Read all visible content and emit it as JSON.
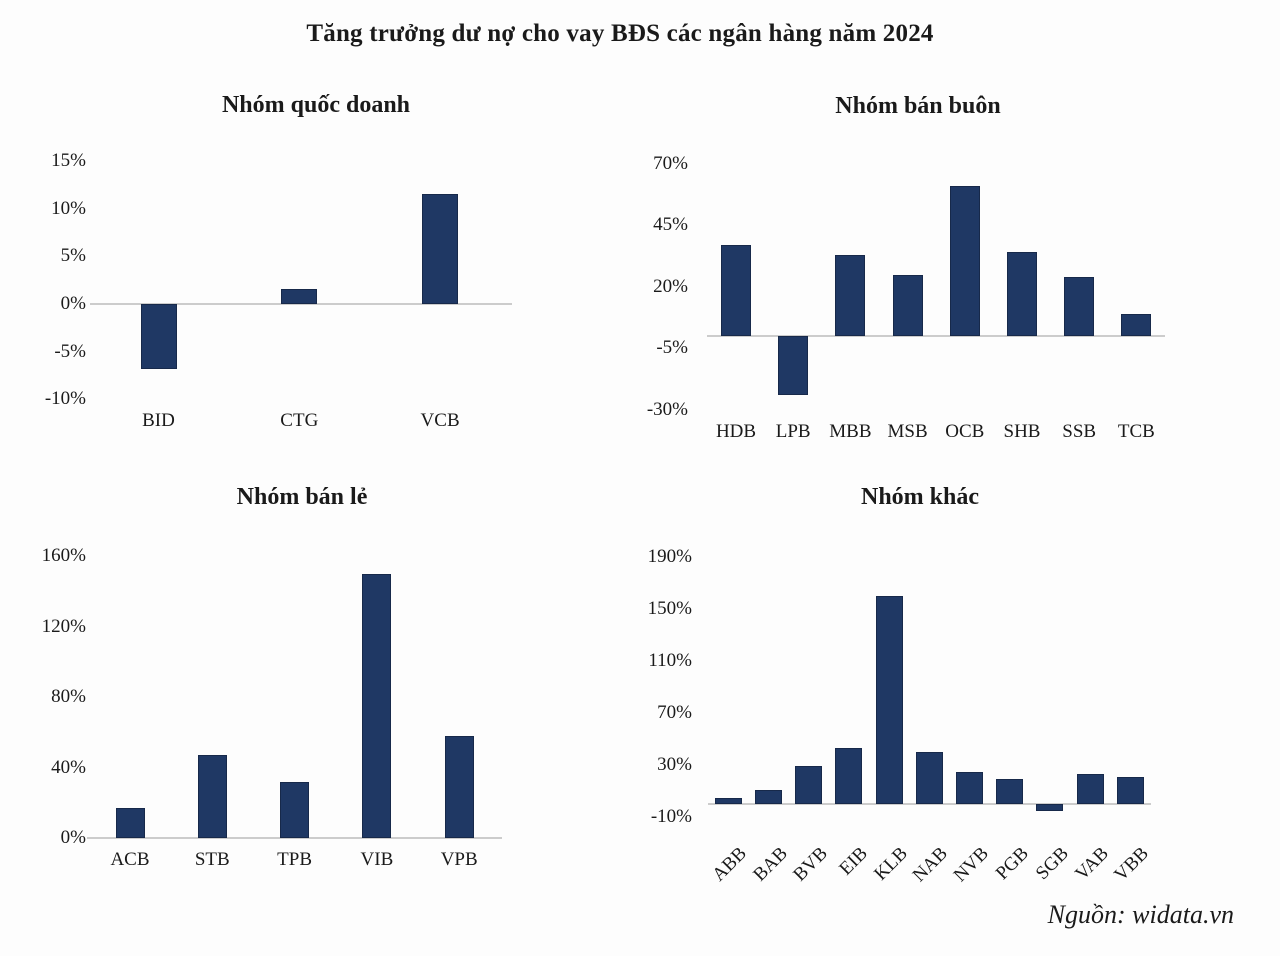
{
  "title": "Tăng trưởng dư nợ cho vay BĐS các ngân hàng năm 2024",
  "source": "Nguồn: widata.vn",
  "colors": {
    "bar": "#1f3864",
    "bar_border": "#17294a",
    "axis": "#cccccc",
    "text": "#1a1a1a",
    "background": "#fdfdfd"
  },
  "chart_data": [
    {
      "id": "quoc-doanh",
      "type": "bar",
      "title": "Nhóm quốc doanh",
      "categories": [
        "BID",
        "CTG",
        "VCB"
      ],
      "values": [
        -6.8,
        1.6,
        11.5
      ],
      "ylim": [
        -10,
        15
      ],
      "yticks": [
        15,
        10,
        5,
        0,
        -5,
        -10
      ],
      "ytick_labels": [
        "15%",
        "10%",
        "5%",
        "0%",
        "-5%",
        "-10%"
      ],
      "grid": false,
      "legend": "none"
    },
    {
      "id": "ban-buon",
      "type": "bar",
      "title": "Nhóm bán buôn",
      "categories": [
        "HDB",
        "LPB",
        "MBB",
        "MSB",
        "OCB",
        "SHB",
        "SSB",
        "TCB"
      ],
      "values": [
        37,
        -24,
        33,
        25,
        61,
        34,
        24,
        9
      ],
      "ylim": [
        -30,
        70
      ],
      "yticks": [
        70,
        45,
        20,
        -5,
        -30
      ],
      "ytick_labels": [
        "70%",
        "45%",
        "20%",
        "-5%",
        "-30%"
      ],
      "grid": false,
      "legend": "none"
    },
    {
      "id": "ban-le",
      "type": "bar",
      "title": "Nhóm bán lẻ",
      "categories": [
        "ACB",
        "STB",
        "TPB",
        "VIB",
        "VPB"
      ],
      "values": [
        17,
        47,
        32,
        150,
        58
      ],
      "ylim": [
        0,
        160
      ],
      "yticks": [
        160,
        120,
        80,
        40,
        0
      ],
      "ytick_labels": [
        "160%",
        "120%",
        "80%",
        "40%",
        "0%"
      ],
      "grid": false,
      "legend": "none"
    },
    {
      "id": "khac",
      "type": "bar",
      "title": "Nhóm khác",
      "categories": [
        "ABB",
        "BAB",
        "BVB",
        "EIB",
        "KLB",
        "NAB",
        "NVB",
        "PGB",
        "SGB",
        "VAB",
        "VBB"
      ],
      "values": [
        5,
        11,
        29,
        43,
        160,
        40,
        25,
        19,
        -5,
        23,
        21
      ],
      "ylim": [
        -10,
        190
      ],
      "yticks": [
        190,
        150,
        110,
        70,
        30,
        -10
      ],
      "ytick_labels": [
        "190%",
        "150%",
        "110%",
        "70%",
        "30%",
        "-10%"
      ],
      "grid": false,
      "legend": "none",
      "x_label_rotation": 45
    }
  ]
}
